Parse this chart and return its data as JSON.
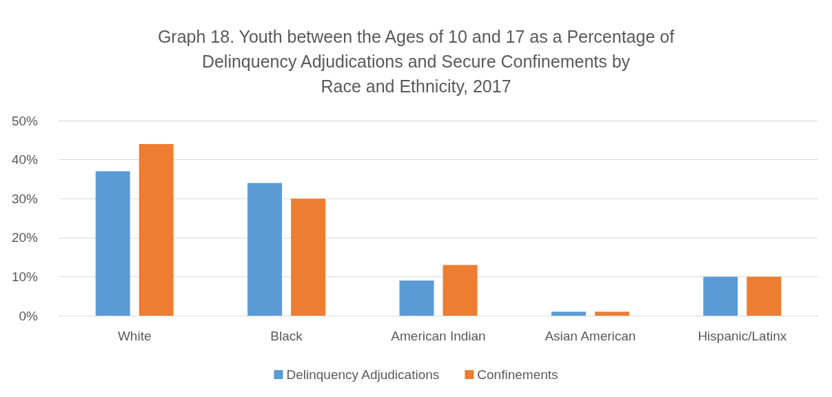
{
  "chart_data": {
    "type": "bar",
    "title": "Graph 18. Youth between the Ages of 10 and 17 as a Percentage of\nDelinquency Adjudications and Secure Confinements by\nRace and Ethnicity, 2017",
    "categories": [
      "White",
      "Black",
      "American Indian",
      "Asian American",
      "Hispanic/Latinx"
    ],
    "series": [
      {
        "name": "Delinquency Adjudications",
        "color": "#5b9bd5",
        "values": [
          37,
          34,
          9,
          1,
          10
        ]
      },
      {
        "name": "Confinements",
        "color": "#ed7d31",
        "values": [
          44,
          30,
          13,
          1,
          10
        ]
      }
    ],
    "ylim": [
      0,
      50
    ],
    "yticks": [
      {
        "value": 0,
        "label": "0%"
      },
      {
        "value": 10,
        "label": "10%"
      },
      {
        "value": 20,
        "label": "20%"
      },
      {
        "value": 30,
        "label": "30%"
      },
      {
        "value": 40,
        "label": "40%"
      },
      {
        "value": 50,
        "label": "50%"
      }
    ],
    "grid": true,
    "legend": "bottom"
  }
}
